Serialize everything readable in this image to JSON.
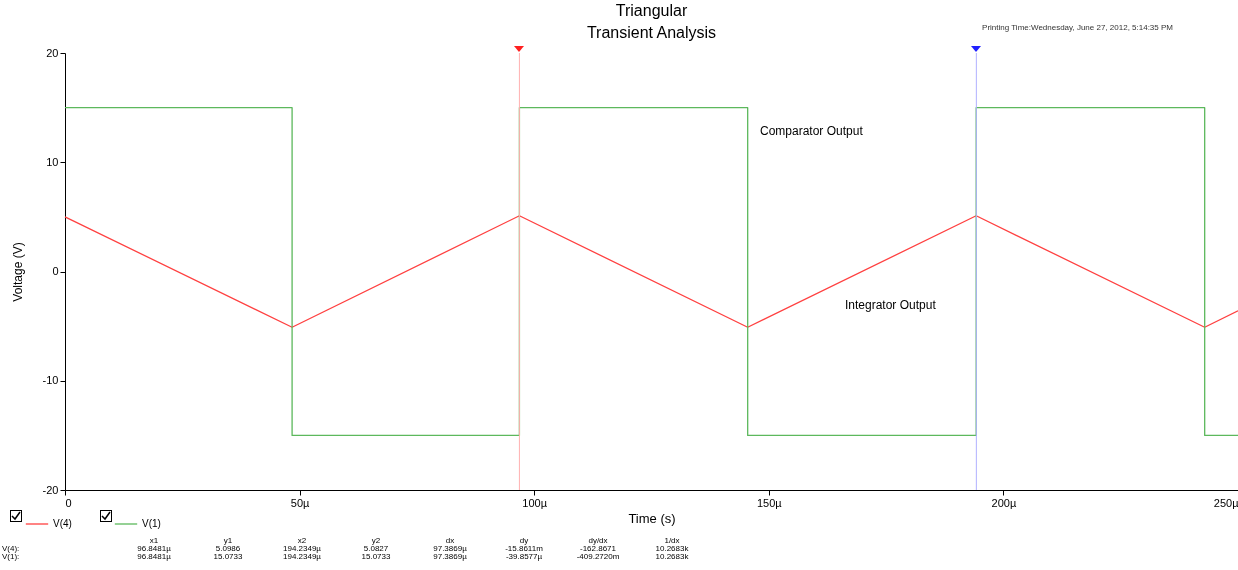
{
  "chart_data": {
    "type": "line",
    "title": "Triangular",
    "subtitle": "Transient Analysis",
    "xlabel": "Time (s)",
    "ylabel": "Voltage (V)",
    "xlim": [
      0,
      250
    ],
    "xticks": [
      0,
      {
        "value": 50,
        "label": "50µ"
      },
      {
        "value": 100,
        "label": "100µ"
      },
      {
        "value": 150,
        "label": "150µ"
      },
      {
        "value": 200,
        "label": "200µ"
      },
      {
        "value": 250,
        "label": "250µ"
      }
    ],
    "ylim": [
      -20,
      20
    ],
    "yticks": [
      -20,
      -10,
      0,
      10,
      20
    ],
    "grid": false,
    "legend": "bottom left",
    "marker": "none",
    "line_style": "solid",
    "series": [
      {
        "name": "V(4)",
        "color": "#ff4040",
        "x": [
          0,
          48.4,
          96.85,
          145.5,
          194.2,
          242.9,
          250
        ],
        "values": [
          5,
          -5.1,
          5.1,
          -5.1,
          5.1,
          -5.1,
          -3.6
        ]
      },
      {
        "name": "V(1)",
        "color": "#5cb85c",
        "x": [
          0,
          48.4,
          48.4,
          96.85,
          96.85,
          145.5,
          145.5,
          194.2,
          194.2,
          242.9,
          242.9,
          250
        ],
        "values": [
          15,
          15,
          -15,
          -15,
          15,
          15,
          -15,
          -15,
          15,
          15,
          -15,
          -15
        ]
      }
    ],
    "ref_lines": [
      {
        "axis": "x",
        "value": 96.8481,
        "color": "#ffb0b0"
      },
      {
        "axis": "x",
        "value": 194.2349,
        "color": "#b0b0ff"
      }
    ],
    "annotations": [
      "Printing Time:Wednesday, June 27, 2012, 5:14:35 PM",
      "Comparator Output",
      "Integrator Output",
      "\tx1\ty1\tx2\ty2\tdx\tdy\tdy/dx\t1/dx",
      "V(4):\t96.8481µ\t5.0986\t194.2349µ\t5.0827\t97.3869µ\t-15.8611m\t-162.8671\t10.2683k",
      "V(1):\t96.8481µ\t15.0733\t194.2349µ\t15.0733\t97.3869µ\t-39.8577µ\t-409.2720m\t10.2683k"
    ]
  }
}
